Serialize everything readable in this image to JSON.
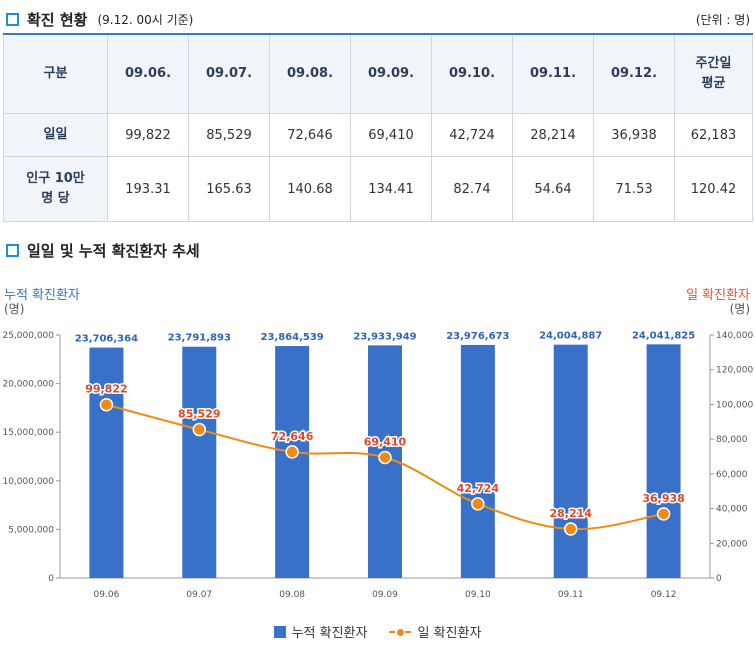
{
  "section1": {
    "title": "확진 현황",
    "subtitle": "(9.12. 00시 기준)",
    "unit": "(단위 : 명)"
  },
  "table": {
    "headers": [
      "구분",
      "09.06.",
      "09.07.",
      "09.08.",
      "09.09.",
      "09.10.",
      "09.11.",
      "09.12.",
      "주간일\n평균"
    ],
    "rows": [
      {
        "label": "일일",
        "values": [
          "99,822",
          "85,529",
          "72,646",
          "69,410",
          "42,724",
          "28,214",
          "36,938",
          "62,183"
        ]
      },
      {
        "label": "인구 10만\n명 당",
        "values": [
          "193.31",
          "165.63",
          "140.68",
          "134.41",
          "82.74",
          "54.64",
          "71.53",
          "120.42"
        ]
      }
    ]
  },
  "section2": {
    "title": "일일 및 누적 확진환자 추세"
  },
  "chart_data": {
    "type": "bar",
    "categories": [
      "09.06",
      "09.07",
      "09.08",
      "09.09",
      "09.10",
      "09.11",
      "09.12"
    ],
    "series": [
      {
        "name": "누적 확진환자",
        "type": "bar",
        "axis": "left",
        "color": "#3a71c8",
        "values": [
          23706364,
          23791893,
          23864539,
          23933949,
          23976673,
          24004887,
          24041825
        ],
        "labels": [
          "23,706,364",
          "23,791,893",
          "23,864,539",
          "23,933,949",
          "23,976,673",
          "24,004,887",
          "24,041,825"
        ]
      },
      {
        "name": "일 확진환자",
        "type": "line",
        "axis": "right",
        "color": "#ef8a12",
        "values": [
          99822,
          85529,
          72646,
          69410,
          42724,
          28214,
          36938
        ],
        "labels": [
          "99,822",
          "85,529",
          "72,646",
          "69,410",
          "42,724",
          "28,214",
          "36,938"
        ]
      }
    ],
    "left_axis": {
      "title": "누적 확진환자",
      "unit": "(명)",
      "ylim": [
        0,
        25000000
      ],
      "ticks": [
        "0",
        "5,000,000",
        "10,000,000",
        "15,000,000",
        "20,000,000",
        "25,000,000"
      ]
    },
    "right_axis": {
      "title": "일 확진환자",
      "unit": "(명)",
      "ylim": [
        0,
        140000
      ],
      "ticks": [
        "0",
        "20,000",
        "40,000",
        "60,000",
        "80,000",
        "100,000",
        "120,000",
        "140,000"
      ]
    },
    "grid": false,
    "legend": "bottom-center"
  }
}
